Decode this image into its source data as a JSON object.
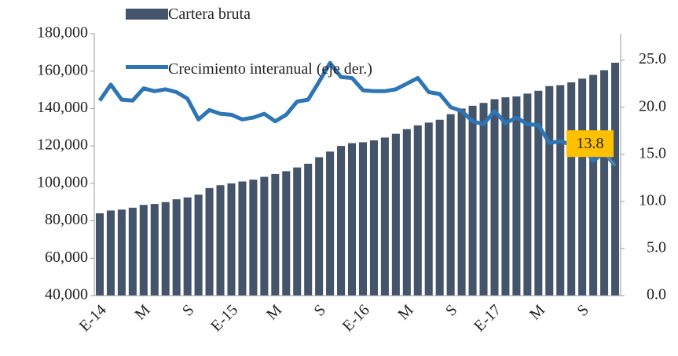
{
  "chart_data": {
    "type": "bar-line",
    "categories": [
      "E-14",
      null,
      null,
      null,
      "M",
      null,
      null,
      null,
      "S",
      null,
      null,
      null,
      "E-15",
      null,
      null,
      null,
      "M",
      null,
      null,
      null,
      "S",
      null,
      null,
      null,
      "E-16",
      null,
      null,
      null,
      "M",
      null,
      null,
      null,
      "S",
      null,
      null,
      null,
      "E-17",
      null,
      null,
      null,
      "M",
      null,
      null,
      null,
      "S",
      null,
      null,
      null
    ],
    "series": [
      {
        "name": "Cartera bruta",
        "type": "bar",
        "color": "#44546a",
        "values": [
          84000,
          85500,
          86000,
          87000,
          88500,
          89000,
          90000,
          91500,
          92500,
          94000,
          97500,
          99000,
          100000,
          101000,
          102000,
          103500,
          105000,
          106500,
          108500,
          110500,
          114000,
          117000,
          120000,
          121500,
          122000,
          123000,
          124500,
          126500,
          129000,
          131000,
          132500,
          134000,
          137000,
          140000,
          141500,
          143000,
          145000,
          146000,
          146500,
          148000,
          149500,
          152000,
          152500,
          154000,
          156000,
          158000,
          160500,
          164500
        ]
      },
      {
        "name": "Crecimiento interanual (eje der.)",
        "type": "line",
        "axis": "y2",
        "color": "#2e75b6",
        "values": [
          20.7,
          22.4,
          20.8,
          20.7,
          22.0,
          21.7,
          21.9,
          21.6,
          20.9,
          18.7,
          19.7,
          19.3,
          19.2,
          18.7,
          18.9,
          19.3,
          18.5,
          19.2,
          20.6,
          20.8,
          22.7,
          24.7,
          23.2,
          23.1,
          21.8,
          21.7,
          21.7,
          21.9,
          22.5,
          23.1,
          21.6,
          21.4,
          20.0,
          19.6,
          18.5,
          18.2,
          19.6,
          18.3,
          18.9,
          18.2,
          18.1,
          16.2,
          16.4,
          16.0,
          15.8,
          14.3,
          15.2,
          13.8
        ]
      }
    ],
    "ylim": [
      40000,
      180000
    ],
    "yticks": [
      {
        "value": 40000,
        "label": "40,000"
      },
      {
        "value": 60000,
        "label": "60,000"
      },
      {
        "value": 80000,
        "label": "80,000"
      },
      {
        "value": 100000,
        "label": "100,000"
      },
      {
        "value": 120000,
        "label": "120,000"
      },
      {
        "value": 140000,
        "label": "140,000"
      },
      {
        "value": 160000,
        "label": "160,000"
      },
      {
        "value": 180000,
        "label": "180,000"
      }
    ],
    "y2lim": [
      0,
      27.8
    ],
    "y2ticks": [
      {
        "value": 0,
        "label": "0.0"
      },
      {
        "value": 5,
        "label": "5.0"
      },
      {
        "value": 10,
        "label": "10.0"
      },
      {
        "value": 15,
        "label": "15.0"
      },
      {
        "value": 20,
        "label": "20.0"
      },
      {
        "value": 25,
        "label": "25.0"
      }
    ],
    "grid": false
  }
}
